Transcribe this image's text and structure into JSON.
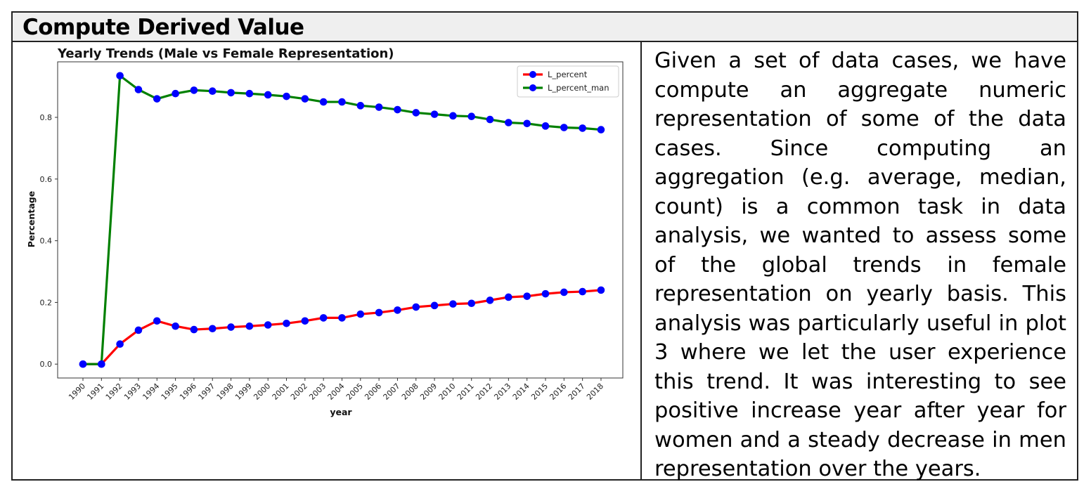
{
  "header": {
    "title": "Compute Derived Value"
  },
  "description": "Given a set of data cases, we have compute an aggregate numeric representation of some of the data cases. Since computing an aggregation (e.g. average, median, count) is a common task in data analysis, we wanted to assess some of the global trends in female representation on yearly basis. This analysis was particularly useful in plot 3 where we let the user experience this trend. It was interesting to see positive increase year after year for women and a steady decrease in men representation over the years.",
  "chart_data": {
    "type": "line",
    "title": "Yearly Trends (Male vs Female Representation)",
    "xlabel": "year",
    "ylabel": "Percentage",
    "x": [
      "1990",
      "1991",
      "1992",
      "1993",
      "1994",
      "1995",
      "1996",
      "1997",
      "1998",
      "1999",
      "2000",
      "2001",
      "2002",
      "2003",
      "2004",
      "2005",
      "2006",
      "2007",
      "2008",
      "2009",
      "2010",
      "2011",
      "2012",
      "2013",
      "2014",
      "2015",
      "2016",
      "2017",
      "2018"
    ],
    "ylim": [
      -0.045,
      0.98
    ],
    "yticks": [
      "0.0",
      "0.2",
      "0.4",
      "0.6",
      "0.8"
    ],
    "legend_position": "top-right",
    "marker_color": "#0000ff",
    "series": [
      {
        "name": "L_percent",
        "color": "#ff0000",
        "values": [
          0.0,
          0.0,
          0.065,
          0.11,
          0.14,
          0.123,
          0.112,
          0.115,
          0.12,
          0.123,
          0.127,
          0.132,
          0.14,
          0.15,
          0.15,
          0.162,
          0.167,
          0.175,
          0.185,
          0.19,
          0.195,
          0.197,
          0.207,
          0.217,
          0.22,
          0.228,
          0.233,
          0.235,
          0.24
        ]
      },
      {
        "name": "L_percent_man",
        "color": "#008000",
        "values": [
          0.0,
          0.0,
          0.935,
          0.89,
          0.86,
          0.877,
          0.888,
          0.885,
          0.88,
          0.877,
          0.873,
          0.868,
          0.86,
          0.85,
          0.85,
          0.838,
          0.833,
          0.825,
          0.815,
          0.81,
          0.805,
          0.803,
          0.793,
          0.783,
          0.78,
          0.772,
          0.767,
          0.765,
          0.76
        ]
      }
    ]
  }
}
